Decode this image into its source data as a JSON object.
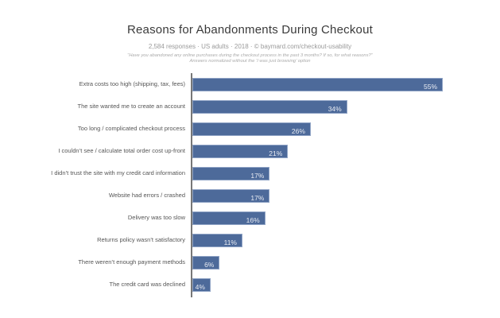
{
  "header": {
    "title": "Reasons for Abandonments During Checkout",
    "subtitle": "2,584 responses · US adults · 2018 · © baymard.com/checkout-usability",
    "footnote_line1": "“Have you abandoned any online purchases during the checkout process in the past 3 months? If so, for what reasons?”",
    "footnote_line2": "Answers normalized without the ‘I was just browsing’ option"
  },
  "chart_data": {
    "type": "bar",
    "orientation": "horizontal",
    "title": "Reasons for Abandonments During Checkout",
    "subtitle": "2,584 responses · US adults · 2018 · © baymard.com/checkout-usability",
    "xlabel": "",
    "ylabel": "",
    "xlim": [
      0,
      60
    ],
    "grid": false,
    "legend": null,
    "categories": [
      "Extra costs too high (shipping, tax, fees)",
      "The site wanted me to create an account",
      "Too long / complicated checkout process",
      "I couldn’t see / calculate total order cost up-front",
      "I didn’t trust the site with my credit card information",
      "Website had errors / crashed",
      "Delivery was too slow",
      "Returns policy wasn’t satisfactory",
      "There weren’t enough payment methods",
      "The credit card was declined"
    ],
    "values": [
      55,
      34,
      26,
      21,
      17,
      17,
      16,
      11,
      6,
      4
    ],
    "value_labels": [
      "55%",
      "34%",
      "26%",
      "21%",
      "17%",
      "17%",
      "16%",
      "11%",
      "6%",
      "4%"
    ],
    "colors": {
      "bar_fill": "#4d6a9a",
      "bar_border": "#8fa3c5",
      "axis_line": "#777777",
      "category_text": "#555555",
      "value_text": "#e9ecf3",
      "background": "#ffffff"
    }
  }
}
